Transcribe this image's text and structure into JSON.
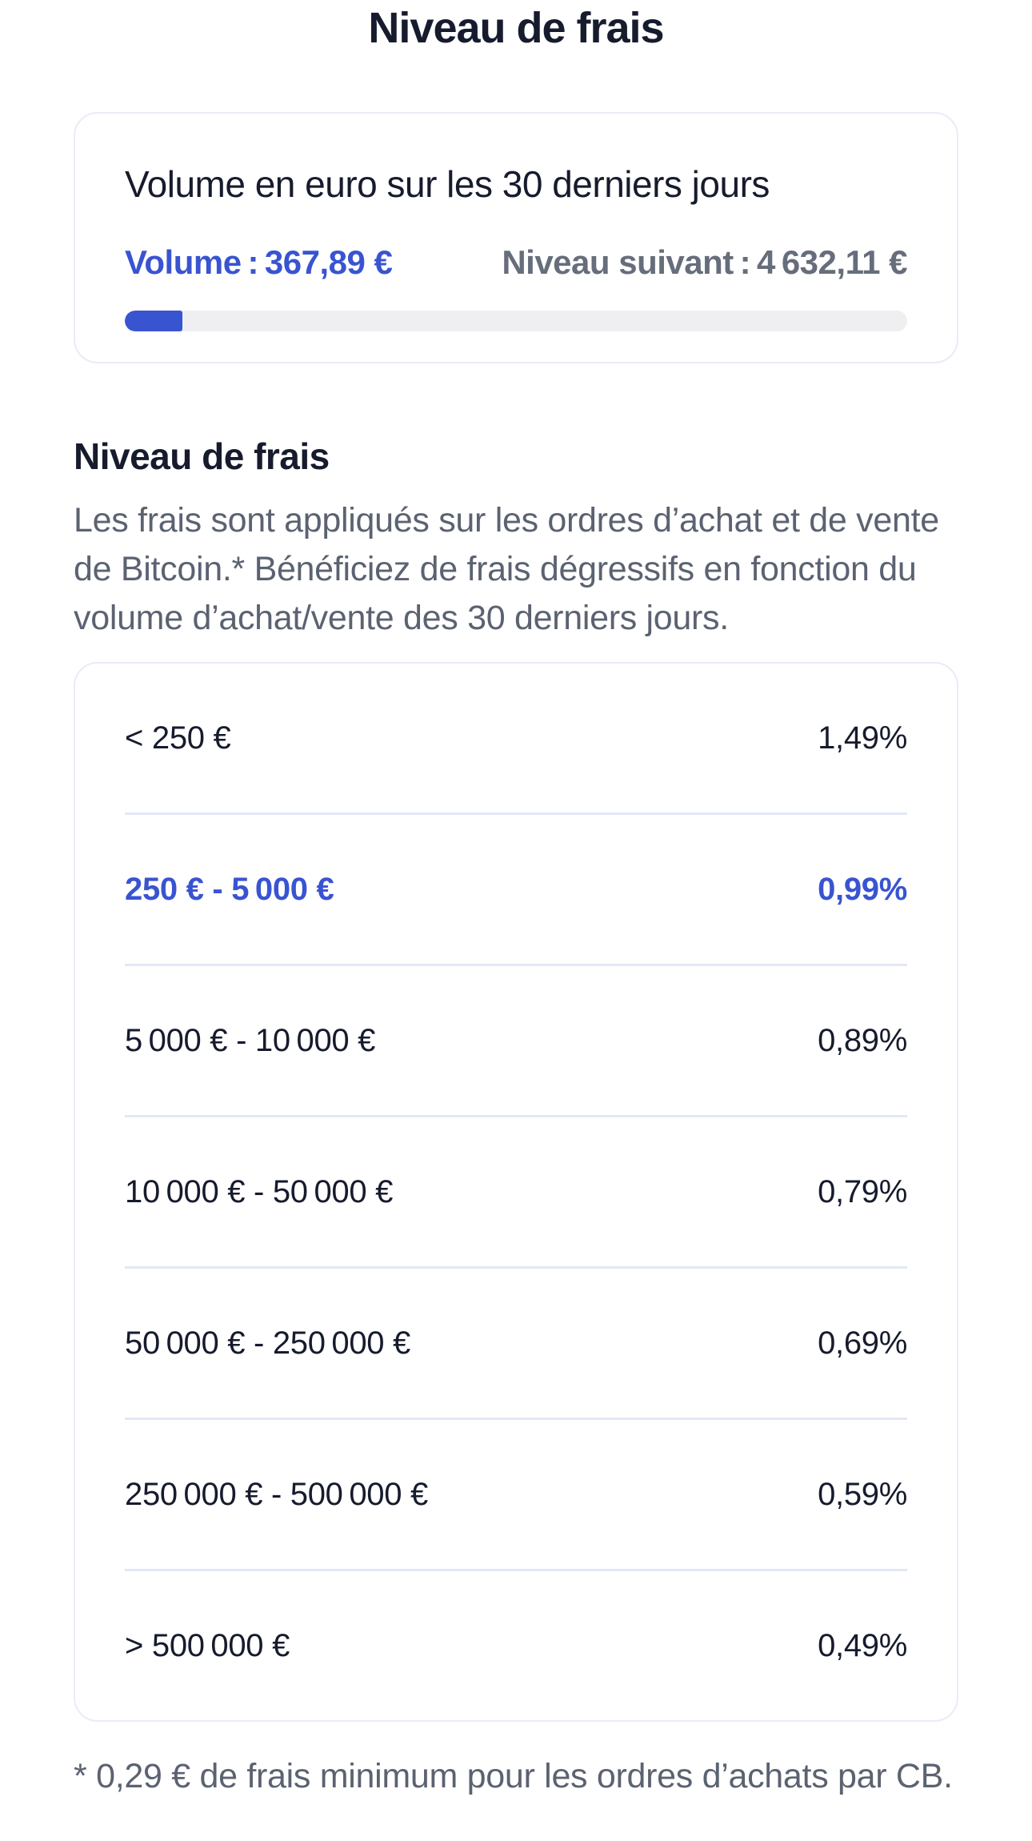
{
  "page": {
    "title": "Niveau de frais"
  },
  "volume_card": {
    "title": "Volume en euro sur les 30 derniers jours",
    "volume_label": "Volume : 367,89 €",
    "next_level_label": "Niveau suivant : 4 632,11 €",
    "volume_eur": "367,89",
    "next_level_eur": "4632,11",
    "progress_percent": 7.36
  },
  "fees": {
    "heading": "Niveau de frais",
    "description": "Les frais sont appliqués sur les ordres d’achat et de vente de Bitcoin.* Bénéficiez de frais dégressifs en fonction du volume d’achat/vente des 30 derniers jours.",
    "tiers": [
      {
        "range": "< 250 €",
        "rate": "1,49%",
        "active": false
      },
      {
        "range": "250 € - 5 000 €",
        "rate": "0,99%",
        "active": true
      },
      {
        "range": "5 000 € - 10 000 €",
        "rate": "0,89%",
        "active": false
      },
      {
        "range": "10 000 € - 50 000 €",
        "rate": "0,79%",
        "active": false
      },
      {
        "range": "50 000 € - 250 000 €",
        "rate": "0,69%",
        "active": false
      },
      {
        "range": "250 000 € - 500 000 €",
        "rate": "0,59%",
        "active": false
      },
      {
        "range": "> 500 000 €",
        "rate": "0,49%",
        "active": false
      }
    ],
    "footnote": "* 0,29 € de frais minimum pour les ordres d’achats par CB."
  },
  "colors": {
    "accent_blue": "#3954D1",
    "text_dark": "#161B2D",
    "text_gray": "#5B6271",
    "text_gray_bold": "#666D7B",
    "divider": "#E2E8F6",
    "card_border": "#E9ECF6",
    "progress_track": "#EFEFF1",
    "background": "#FFFFFF"
  }
}
